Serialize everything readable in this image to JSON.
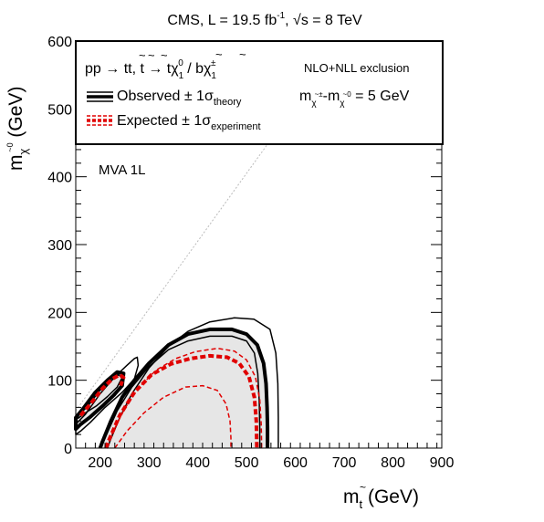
{
  "header": {
    "title_prefix": "CMS, L = 19.5 fb",
    "title_exp": "-1",
    "title_mid": ", ",
    "title_sqrt": "√s",
    "title_suffix": " = 8 TeV"
  },
  "chart_data": {
    "type": "line",
    "xlabel_main": "m",
    "xlabel_sub": "t",
    "xlabel_unit": " (GeV)",
    "ylabel_main": "m",
    "ylabel_sub": "χ",
    "ylabel_sup": "~0",
    "ylabel_unit": " (GeV)",
    "xlim": [
      150,
      900
    ],
    "ylim": [
      0,
      600
    ],
    "x_ticks": [
      200,
      300,
      400,
      500,
      600,
      700,
      800,
      900
    ],
    "y_ticks": [
      0,
      100,
      200,
      300,
      400,
      500,
      600
    ],
    "legend": {
      "placement": "top",
      "process_pp": "pp → ",
      "process_tt": "tt, t → tχ",
      "process_sub1": "1",
      "process_sup0": "0",
      "process_slash": " / bχ",
      "process_sub2": "1",
      "process_suppm": "±",
      "nlo": "NLO+NLL exclusion",
      "observed": "Observed ± 1σ",
      "observed_sub": "theory",
      "expected": "Expected ± 1σ",
      "expected_sub": "experiment",
      "mass_diff_m1": "m",
      "mass_diff_sub1": "χ",
      "mass_diff_sup1": "~±",
      "mass_diff_dash": "-m",
      "mass_diff_sub2": "χ",
      "mass_diff_sup2": "~0",
      "mass_diff_val": " = 5 GeV"
    },
    "annotation": "MVA 1L",
    "colors": {
      "observed": "#000000",
      "expected": "#e00000",
      "fill": "#e6e6e6",
      "diagonal": "#bbbbbb"
    },
    "series": [
      {
        "name": "Observed",
        "region": "main",
        "points": [
          [
            200,
            0
          ],
          [
            205,
            10
          ],
          [
            222,
            40
          ],
          [
            245,
            75
          ],
          [
            270,
            100
          ],
          [
            300,
            125
          ],
          [
            340,
            152
          ],
          [
            380,
            168
          ],
          [
            425,
            175
          ],
          [
            470,
            175
          ],
          [
            500,
            168
          ],
          [
            522,
            152
          ],
          [
            535,
            125
          ],
          [
            540,
            95
          ],
          [
            542,
            60
          ],
          [
            543,
            30
          ],
          [
            543,
            0
          ]
        ]
      },
      {
        "name": "Observed",
        "region": "low",
        "points": [
          [
            150,
            45
          ],
          [
            165,
            58
          ],
          [
            190,
            82
          ],
          [
            215,
            100
          ],
          [
            235,
            112
          ],
          [
            248,
            110
          ],
          [
            245,
            92
          ],
          [
            228,
            78
          ],
          [
            205,
            62
          ],
          [
            180,
            46
          ],
          [
            160,
            35
          ],
          [
            150,
            28
          ]
        ]
      },
      {
        "name": "Observed +1σ theory",
        "region": "main",
        "points": [
          [
            215,
            0
          ],
          [
            220,
            10
          ],
          [
            240,
            45
          ],
          [
            265,
            80
          ],
          [
            300,
            118
          ],
          [
            340,
            150
          ],
          [
            380,
            172
          ],
          [
            425,
            186
          ],
          [
            475,
            192
          ],
          [
            515,
            190
          ],
          [
            548,
            175
          ],
          [
            560,
            140
          ],
          [
            564,
            95
          ],
          [
            565,
            45
          ],
          [
            565,
            0
          ]
        ]
      },
      {
        "name": "Observed +1σ theory",
        "region": "low",
        "points": [
          [
            150,
            35
          ],
          [
            170,
            50
          ],
          [
            200,
            80
          ],
          [
            230,
            105
          ],
          [
            255,
            122
          ],
          [
            270,
            132
          ],
          [
            276,
            134
          ],
          [
            278,
            122
          ],
          [
            270,
            102
          ],
          [
            245,
            82
          ],
          [
            210,
            60
          ],
          [
            180,
            38
          ],
          [
            160,
            25
          ],
          [
            150,
            20
          ]
        ]
      },
      {
        "name": "Observed -1σ theory",
        "region": "main",
        "points": [
          [
            200,
            0
          ],
          [
            212,
            18
          ],
          [
            235,
            55
          ],
          [
            265,
            90
          ],
          [
            300,
            120
          ],
          [
            340,
            145
          ],
          [
            380,
            158
          ],
          [
            425,
            165
          ],
          [
            470,
            165
          ],
          [
            500,
            158
          ],
          [
            516,
            140
          ],
          [
            523,
            110
          ],
          [
            526,
            70
          ],
          [
            527,
            30
          ],
          [
            527,
            0
          ]
        ]
      },
      {
        "name": "Observed -1σ theory",
        "region": "low",
        "points": [
          [
            155,
            48
          ],
          [
            175,
            62
          ],
          [
            198,
            84
          ],
          [
            220,
            98
          ],
          [
            238,
            108
          ],
          [
            245,
            104
          ],
          [
            235,
            90
          ],
          [
            215,
            76
          ],
          [
            192,
            62
          ],
          [
            170,
            52
          ],
          [
            155,
            44
          ]
        ]
      },
      {
        "name": "Expected",
        "region": "main",
        "points": [
          [
            212,
            0
          ],
          [
            218,
            12
          ],
          [
            240,
            48
          ],
          [
            270,
            82
          ],
          [
            305,
            108
          ],
          [
            345,
            124
          ],
          [
            385,
            132
          ],
          [
            425,
            136
          ],
          [
            460,
            134
          ],
          [
            485,
            125
          ],
          [
            505,
            105
          ],
          [
            516,
            75
          ],
          [
            520,
            40
          ],
          [
            521,
            0
          ]
        ]
      },
      {
        "name": "Expected",
        "region": "low",
        "points": [
          [
            160,
            48
          ],
          [
            180,
            65
          ],
          [
            205,
            88
          ],
          [
            225,
            102
          ],
          [
            240,
            108
          ],
          [
            248,
            104
          ],
          [
            242,
            92
          ]
        ]
      },
      {
        "name": "Expected +1σ experiment",
        "region": "main",
        "points": [
          [
            212,
            0
          ],
          [
            225,
            22
          ],
          [
            250,
            58
          ],
          [
            280,
            90
          ],
          [
            315,
            115
          ],
          [
            355,
            132
          ],
          [
            395,
            142
          ],
          [
            440,
            147
          ],
          [
            475,
            143
          ],
          [
            500,
            130
          ],
          [
            518,
            105
          ],
          [
            527,
            72
          ],
          [
            530,
            35
          ],
          [
            531,
            0
          ]
        ]
      },
      {
        "name": "Expected -1σ experiment",
        "region": "main",
        "points": [
          [
            230,
            0
          ],
          [
            255,
            25
          ],
          [
            290,
            52
          ],
          [
            330,
            75
          ],
          [
            375,
            90
          ],
          [
            410,
            92
          ],
          [
            440,
            85
          ],
          [
            458,
            65
          ],
          [
            466,
            40
          ],
          [
            468,
            15
          ],
          [
            468,
            0
          ]
        ]
      }
    ]
  }
}
